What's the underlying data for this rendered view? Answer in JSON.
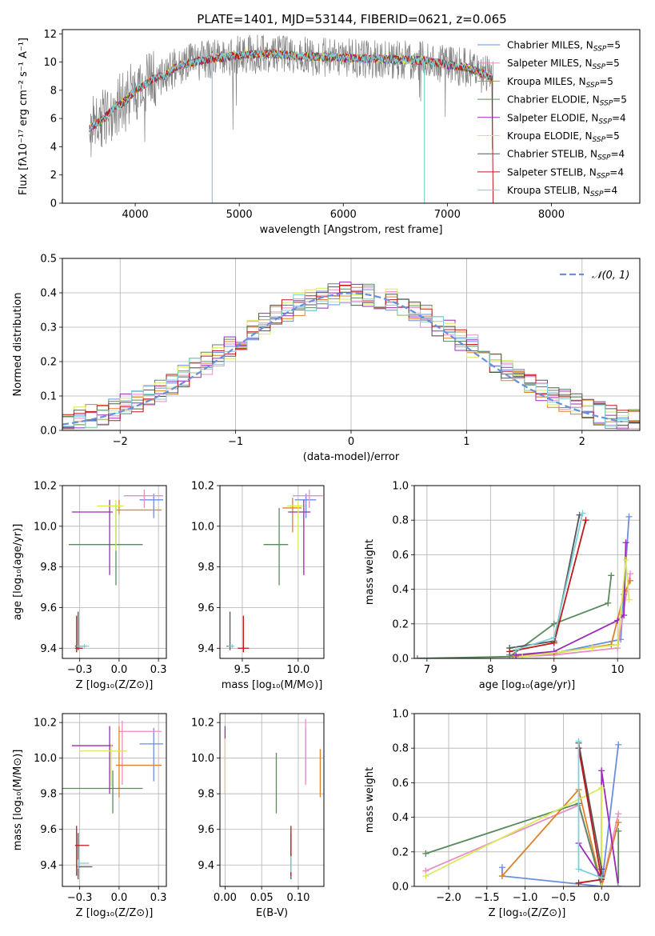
{
  "figure": {
    "title": "PLATE=1401, MJD=53144, FIBERID=0621, z=0.065"
  },
  "colors": {
    "chabrier_miles": "#6a8fde",
    "salpeter_miles": "#e88ec4",
    "kroupa_miles": "#e0812a",
    "chabrier_elodie": "#5a8a5e",
    "salpeter_elodie": "#9a2ab8",
    "kroupa_elodie": "#d8ea5a",
    "chabrier_stelib": "#555555",
    "salpeter_stelib": "#c01818",
    "kroupa_stelib": "#80d0d8",
    "data": "#808080",
    "normal": "#6a8fde"
  },
  "legend_entries": [
    {
      "pre": "Chabrier MILES, N",
      "sub": "SSP",
      "post": "=5",
      "color": "chabrier_miles"
    },
    {
      "pre": "Salpeter MILES, N",
      "sub": "SSP",
      "post": "=5",
      "color": "salpeter_miles"
    },
    {
      "pre": "Kroupa MILES, N",
      "sub": "SSP",
      "post": "=5",
      "color": "kroupa_miles"
    },
    {
      "pre": "Chabrier ELODIE, N",
      "sub": "SSP",
      "post": "=5",
      "color": "chabrier_elodie"
    },
    {
      "pre": "Salpeter ELODIE, N",
      "sub": "SSP",
      "post": "=4",
      "color": "salpeter_elodie"
    },
    {
      "pre": "Kroupa ELODIE, N",
      "sub": "SSP",
      "post": "=5",
      "color": "kroupa_elodie"
    },
    {
      "pre": "Chabrier STELIB, N",
      "sub": "SSP",
      "post": "=4",
      "color": "chabrier_stelib"
    },
    {
      "pre": "Salpeter STELIB, N",
      "sub": "SSP",
      "post": "=4",
      "color": "salpeter_stelib"
    },
    {
      "pre": "Kroupa STELIB, N",
      "sub": "SSP",
      "post": "=4",
      "color": "kroupa_stelib"
    }
  ],
  "chart_data": [
    {
      "id": "spectrum",
      "type": "line",
      "xlabel": "wavelength [Angstrom, rest frame]",
      "ylabel": "Flux [fλ10⁻¹⁷ erg cm⁻² s⁻¹ A⁻¹]",
      "xlim": [
        3300,
        8850
      ],
      "ylim": [
        0,
        12.3
      ],
      "xticks": [
        4000,
        5000,
        6000,
        7000,
        8000
      ],
      "yticks": [
        0,
        2,
        4,
        6,
        8,
        10,
        12
      ],
      "grid": false,
      "legend_placement": "right",
      "continuum": {
        "x": [
          3560,
          3700,
          3800,
          3900,
          4000,
          4100,
          4200,
          4300,
          4400,
          4500,
          4700,
          5000,
          5300,
          5600,
          6000,
          6400,
          6800,
          7000,
          7200,
          7400,
          7440
        ],
        "y": [
          5.3,
          6.0,
          6.8,
          7.2,
          8.0,
          8.4,
          8.9,
          9.1,
          9.7,
          9.9,
          10.2,
          10.5,
          10.6,
          10.4,
          10.3,
          10.2,
          10.1,
          9.8,
          9.6,
          9.0,
          8.8
        ]
      },
      "data_range": [
        3560,
        7440
      ],
      "noise_amplitude": 1.4
    },
    {
      "id": "residuals",
      "type": "histogram",
      "xlabel": "(data-model)/error",
      "ylabel": "Normed distribution",
      "xlim": [
        -2.5,
        2.5
      ],
      "ylim": [
        0,
        0.5
      ],
      "xticks": [
        -2,
        -1,
        0,
        1,
        2
      ],
      "yticks": [
        0.0,
        0.1,
        0.2,
        0.3,
        0.4,
        0.5
      ],
      "grid": true,
      "bin_width": 0.1,
      "legend": "𝒩(0, 1)",
      "legend_placement": "top-right",
      "normal_range": [
        -2.5,
        2.35
      ]
    },
    {
      "id": "age_vs_z",
      "type": "errorbar",
      "xlabel": "Z [log₁₀(Z/Z⊙)]",
      "ylabel": "age  [log₁₀(age/yr)]",
      "xlim": [
        -0.36,
        0.3
      ],
      "ylim": [
        9.35,
        10.2
      ],
      "xticks": [
        -0.25,
        0.0,
        0.25
      ],
      "yticks": [
        9.4,
        9.6,
        9.8,
        10.0,
        10.2
      ],
      "grid": true,
      "points": [
        {
          "c": "chabrier_miles",
          "x": 0.22,
          "y": 10.13,
          "xe": [
            0.09,
            0.06
          ],
          "ye": [
            0.09,
            0.03
          ]
        },
        {
          "c": "salpeter_miles",
          "x": 0.16,
          "y": 10.15,
          "xe": [
            0.13,
            0.12
          ],
          "ye": [
            0.06,
            0.03
          ]
        },
        {
          "c": "kroupa_miles",
          "x": 0.0,
          "y": 10.08,
          "xe": [
            0.02,
            0.27
          ],
          "ye": [
            0.02,
            0.05
          ]
        },
        {
          "c": "chabrier_elodie",
          "x": -0.02,
          "y": 9.91,
          "xe": [
            0.3,
            0.17
          ],
          "ye": [
            0.2,
            0.2
          ]
        },
        {
          "c": "salpeter_elodie",
          "x": -0.06,
          "y": 10.07,
          "xe": [
            0.24,
            0.02
          ],
          "ye": [
            0.31,
            0.06
          ]
        },
        {
          "c": "kroupa_elodie",
          "x": -0.02,
          "y": 10.1,
          "xe": [
            0.12,
            0.05
          ],
          "ye": [
            0.22,
            0.03
          ]
        },
        {
          "c": "chabrier_stelib",
          "x": -0.26,
          "y": 9.41,
          "xe": [
            0.02,
            0.05
          ],
          "ye": [
            0.02,
            0.17
          ]
        },
        {
          "c": "salpeter_stelib",
          "x": -0.27,
          "y": 9.4,
          "xe": [
            0.01,
            0.04
          ],
          "ye": [
            0.02,
            0.16
          ]
        },
        {
          "c": "kroupa_stelib",
          "x": -0.22,
          "y": 9.41,
          "xe": [
            0.05,
            0.03
          ],
          "ye": [
            0.01,
            0.01
          ]
        }
      ]
    },
    {
      "id": "age_vs_mass",
      "type": "errorbar",
      "xlabel": "mass [log₁₀(M/M⊙)]",
      "ylabel": "",
      "xlim": [
        9.3,
        10.23
      ],
      "ylim": [
        9.35,
        10.2
      ],
      "xticks": [
        9.5,
        10.0
      ],
      "yticks": [
        9.4,
        9.6,
        9.8,
        10.0,
        10.2
      ],
      "grid": true,
      "points": [
        {
          "c": "chabrier_miles",
          "x": 10.07,
          "y": 10.13,
          "xe": [
            0.1,
            0.09
          ],
          "ye": [
            0.09,
            0.03
          ]
        },
        {
          "c": "salpeter_miles",
          "x": 10.1,
          "y": 10.15,
          "xe": [
            0.15,
            0.12
          ],
          "ye": [
            0.06,
            0.03
          ]
        },
        {
          "c": "kroupa_miles",
          "x": 9.95,
          "y": 10.09,
          "xe": [
            0.09,
            0.08
          ],
          "ye": [
            0.12,
            0.05
          ]
        },
        {
          "c": "chabrier_elodie",
          "x": 9.83,
          "y": 9.91,
          "xe": [
            0.14,
            0.08
          ],
          "ye": [
            0.2,
            0.18
          ]
        },
        {
          "c": "salpeter_elodie",
          "x": 10.05,
          "y": 10.07,
          "xe": [
            0.14,
            0.06
          ],
          "ye": [
            0.31,
            0.06
          ]
        },
        {
          "c": "kroupa_elodie",
          "x": 10.0,
          "y": 10.1,
          "xe": [
            0.1,
            0.04
          ],
          "ye": [
            0.22,
            0.03
          ]
        },
        {
          "c": "chabrier_stelib",
          "x": 9.39,
          "y": 9.41,
          "xe": [
            0.03,
            0.02
          ],
          "ye": [
            0.02,
            0.17
          ]
        },
        {
          "c": "salpeter_stelib",
          "x": 9.51,
          "y": 9.4,
          "xe": [
            0.05,
            0.05
          ],
          "ye": [
            0.02,
            0.16
          ]
        },
        {
          "c": "kroupa_stelib",
          "x": 9.41,
          "y": 9.41,
          "xe": [
            0.04,
            0.02
          ],
          "ye": [
            0.01,
            0.01
          ]
        }
      ]
    },
    {
      "id": "mass_weight_vs_age",
      "type": "line",
      "xlabel": "age  [log₁₀(age/yr)]",
      "ylabel": "mass weight",
      "xlim": [
        6.8,
        10.35
      ],
      "ylim": [
        0,
        1.0
      ],
      "xticks": [
        7,
        8,
        9,
        10
      ],
      "yticks": [
        0.0,
        0.2,
        0.4,
        0.6,
        0.8,
        1.0
      ],
      "grid": true,
      "series": [
        {
          "c": "chabrier_miles",
          "x": [
            8.3,
            8.4,
            9.0,
            10.05,
            10.18
          ],
          "y": [
            0.02,
            0.02,
            0.03,
            0.11,
            0.82
          ]
        },
        {
          "c": "salpeter_miles",
          "x": [
            8.4,
            9.0,
            10.0,
            10.15,
            10.2
          ],
          "y": [
            0.01,
            0.02,
            0.06,
            0.4,
            0.49
          ]
        },
        {
          "c": "kroupa_miles",
          "x": [
            8.35,
            9.0,
            9.9,
            10.1,
            10.2
          ],
          "y": [
            0.01,
            0.03,
            0.08,
            0.37,
            0.45
          ]
        },
        {
          "c": "chabrier_elodie",
          "x": [
            6.85,
            8.3,
            9.0,
            9.85,
            9.9
          ],
          "y": [
            0.0,
            0.01,
            0.2,
            0.32,
            0.48
          ]
        },
        {
          "c": "salpeter_elodie",
          "x": [
            8.4,
            9.0,
            10.0,
            10.1,
            10.13
          ],
          "y": [
            0.02,
            0.04,
            0.22,
            0.25,
            0.67
          ]
        },
        {
          "c": "kroupa_elodie",
          "x": [
            8.5,
            9.6,
            10.0,
            10.13,
            10.18
          ],
          "y": [
            0.01,
            0.06,
            0.08,
            0.57,
            0.34
          ]
        },
        {
          "c": "chabrier_stelib",
          "x": [
            8.3,
            9.0,
            9.4
          ],
          "y": [
            0.06,
            0.1,
            0.83
          ]
        },
        {
          "c": "salpeter_stelib",
          "x": [
            8.3,
            9.0,
            9.5
          ],
          "y": [
            0.04,
            0.09,
            0.8
          ]
        },
        {
          "c": "kroupa_stelib",
          "x": [
            8.4,
            9.0,
            9.45
          ],
          "y": [
            0.05,
            0.12,
            0.84
          ]
        }
      ]
    },
    {
      "id": "mass_vs_z",
      "type": "errorbar",
      "xlabel": "Z [log₁₀(Z/Z⊙)]",
      "ylabel": "mass [log₁₀(M/M⊙)]",
      "xlim": [
        -0.36,
        0.3
      ],
      "ylim": [
        9.28,
        10.25
      ],
      "xticks": [
        -0.25,
        0.0,
        0.25
      ],
      "yticks": [
        9.4,
        9.6,
        9.8,
        10.0,
        10.2
      ],
      "grid": true,
      "points": [
        {
          "c": "chabrier_miles",
          "x": 0.22,
          "y": 10.08,
          "xe": [
            0.09,
            0.06
          ],
          "ye": [
            0.21,
            0.09
          ]
        },
        {
          "c": "salpeter_miles",
          "x": 0.02,
          "y": 10.15,
          "xe": [
            0.02,
            0.25
          ],
          "ye": [
            0.3,
            0.06
          ]
        },
        {
          "c": "kroupa_miles",
          "x": 0.0,
          "y": 9.96,
          "xe": [
            0.02,
            0.27
          ],
          "ye": [
            0.18,
            0.22
          ]
        },
        {
          "c": "chabrier_elodie",
          "x": -0.04,
          "y": 9.83,
          "xe": [
            0.32,
            0.19
          ],
          "ye": [
            0.14,
            0.1
          ]
        },
        {
          "c": "salpeter_elodie",
          "x": -0.06,
          "y": 10.07,
          "xe": [
            0.24,
            0.02
          ],
          "ye": [
            0.27,
            0.11
          ]
        },
        {
          "c": "kroupa_elodie",
          "x": -0.05,
          "y": 10.04,
          "xe": [
            0.2,
            0.1
          ],
          "ye": [
            0.2,
            0.04
          ]
        },
        {
          "c": "chabrier_stelib",
          "x": -0.26,
          "y": 9.39,
          "xe": [
            0.01,
            0.09
          ],
          "ye": [
            0.07,
            0.19
          ]
        },
        {
          "c": "salpeter_stelib",
          "x": -0.27,
          "y": 9.51,
          "xe": [
            0.01,
            0.08
          ],
          "ye": [
            0.17,
            0.11
          ]
        },
        {
          "c": "kroupa_stelib",
          "x": -0.26,
          "y": 9.41,
          "xe": [
            0.0,
            0.07
          ],
          "ye": [
            0.03,
            0.02
          ]
        }
      ]
    },
    {
      "id": "mass_vs_ebv",
      "type": "errorbar",
      "xlabel": "E(B-V)",
      "ylabel": "",
      "xlim": [
        -0.007,
        0.135
      ],
      "ylim": [
        9.28,
        10.25
      ],
      "xticks": [
        0.0,
        0.05,
        0.1
      ],
      "yticks": [
        9.4,
        9.6,
        9.8,
        10.0,
        10.2
      ],
      "grid": true,
      "points": [
        {
          "c": "chabrier_miles",
          "x": 0.11,
          "y": 10.08,
          "xe": [
            0,
            0
          ],
          "ye": [
            0.21,
            0.09
          ]
        },
        {
          "c": "salpeter_miles",
          "x": 0.11,
          "y": 10.15,
          "xe": [
            0,
            0
          ],
          "ye": [
            0.3,
            0.07
          ]
        },
        {
          "c": "kroupa_miles",
          "x": 0.13,
          "y": 9.96,
          "xe": [
            0,
            0
          ],
          "ye": [
            0.18,
            0.09
          ]
        },
        {
          "c": "chabrier_elodie",
          "x": 0.07,
          "y": 9.83,
          "xe": [
            0,
            0
          ],
          "ye": [
            0.14,
            0.2
          ]
        },
        {
          "c": "salpeter_elodie",
          "x": 0.0,
          "y": 10.07,
          "xe": [
            0,
            0
          ],
          "ye": [
            0.27,
            0.11
          ]
        },
        {
          "c": "kroupa_elodie",
          "x": 0.0,
          "y": 10.04,
          "xe": [
            0,
            0
          ],
          "ye": [
            0.24,
            0.07
          ]
        },
        {
          "c": "chabrier_stelib",
          "x": 0.09,
          "y": 9.39,
          "xe": [
            0,
            0
          ],
          "ye": [
            0.07,
            0.19
          ]
        },
        {
          "c": "salpeter_stelib",
          "x": 0.09,
          "y": 9.51,
          "xe": [
            0,
            0
          ],
          "ye": [
            0.17,
            0.11
          ]
        },
        {
          "c": "kroupa_stelib",
          "x": 0.09,
          "y": 9.41,
          "xe": [
            0,
            0
          ],
          "ye": [
            0.05,
            0.04
          ]
        }
      ]
    },
    {
      "id": "mass_weight_vs_z",
      "type": "line",
      "xlabel": "Z [log₁₀(Z/Z⊙)]",
      "ylabel": "mass weight",
      "xlim": [
        -2.45,
        0.5
      ],
      "ylim": [
        0,
        1.0
      ],
      "xticks": [
        -2.0,
        -1.5,
        -1.0,
        -0.5,
        0.0
      ],
      "yticks": [
        0.0,
        0.2,
        0.4,
        0.6,
        0.8,
        1.0
      ],
      "grid": true,
      "series": [
        {
          "c": "chabrier_miles",
          "x": [
            -1.3,
            -1.3,
            0.0,
            0.22
          ],
          "y": [
            0.11,
            0.06,
            0.0,
            0.82
          ]
        },
        {
          "c": "salpeter_miles",
          "x": [
            -2.3,
            -0.3,
            0.0,
            0.22
          ],
          "y": [
            0.09,
            0.47,
            0.0,
            0.42
          ]
        },
        {
          "c": "kroupa_miles",
          "x": [
            -1.3,
            -0.3,
            0.0,
            0.22
          ],
          "y": [
            0.06,
            0.56,
            0.0,
            0.37
          ]
        },
        {
          "c": "chabrier_elodie",
          "x": [
            -2.3,
            -0.3,
            0.0,
            0.22,
            0.22
          ],
          "y": [
            0.19,
            0.48,
            0.0,
            0.0,
            0.32
          ]
        },
        {
          "c": "salpeter_elodie",
          "x": [
            -0.3,
            0.0,
            0.0,
            0.22
          ],
          "y": [
            0.25,
            0.05,
            0.67,
            0.0
          ]
        },
        {
          "c": "kroupa_elodie",
          "x": [
            -2.3,
            0.0,
            0.0,
            0.22
          ],
          "y": [
            0.06,
            0.57,
            0.0,
            0.0
          ]
        },
        {
          "c": "chabrier_stelib",
          "x": [
            -0.3,
            0.0,
            0.0
          ],
          "y": [
            0.83,
            0.1,
            0.06
          ]
        },
        {
          "c": "salpeter_stelib",
          "x": [
            -0.3,
            0.0,
            -0.3
          ],
          "y": [
            0.02,
            0.04,
            0.8
          ]
        },
        {
          "c": "kroupa_stelib",
          "x": [
            -0.3,
            -0.3,
            0.0
          ],
          "y": [
            0.84,
            0.1,
            0.05
          ]
        }
      ]
    }
  ]
}
